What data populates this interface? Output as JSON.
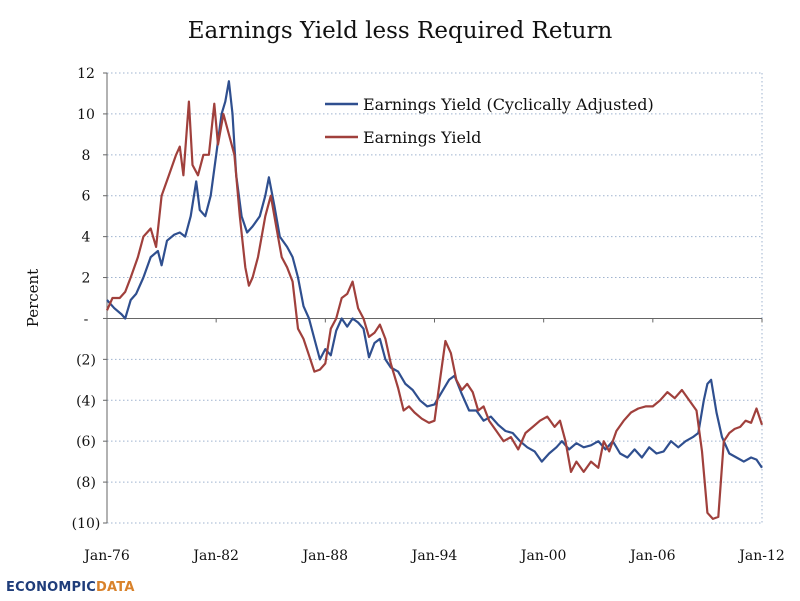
{
  "chart_data": {
    "type": "line",
    "title": "Earnings Yield less Required Return",
    "xlabel": "",
    "ylabel": "Percent",
    "ylim": [
      -10,
      12
    ],
    "xlim": [
      1976,
      2012
    ],
    "y_ticks": [
      {
        "value": 12,
        "label": "12"
      },
      {
        "value": 10,
        "label": "10"
      },
      {
        "value": 8,
        "label": "8"
      },
      {
        "value": 6,
        "label": "6"
      },
      {
        "value": 4,
        "label": "4"
      },
      {
        "value": 2,
        "label": "2"
      },
      {
        "value": 0,
        "label": "-"
      },
      {
        "value": -2,
        "label": "(2)"
      },
      {
        "value": -4,
        "label": "(4)"
      },
      {
        "value": -6,
        "label": "(6)"
      },
      {
        "value": -8,
        "label": "(8)"
      },
      {
        "value": -10,
        "label": "(10)"
      }
    ],
    "x_ticks": [
      {
        "value": 1976,
        "label": "Jan-76"
      },
      {
        "value": 1982,
        "label": "Jan-82"
      },
      {
        "value": 1988,
        "label": "Jan-88"
      },
      {
        "value": 1994,
        "label": "Jan-94"
      },
      {
        "value": 2000,
        "label": "Jan-00"
      },
      {
        "value": 2006,
        "label": "Jan-06"
      },
      {
        "value": 2012,
        "label": "Jan-12"
      }
    ],
    "grid": "horizontal-dotted",
    "legend_position": "top-right",
    "series": [
      {
        "name": "Earnings Yield (Cyclically Adjusted)",
        "color": "#2f4f8f",
        "points": [
          [
            1976.0,
            0.9
          ],
          [
            1976.4,
            0.5
          ],
          [
            1976.8,
            0.2
          ],
          [
            1977.0,
            0.0
          ],
          [
            1977.3,
            0.9
          ],
          [
            1977.6,
            1.2
          ],
          [
            1978.0,
            2.0
          ],
          [
            1978.4,
            3.0
          ],
          [
            1978.8,
            3.3
          ],
          [
            1979.0,
            2.6
          ],
          [
            1979.3,
            3.8
          ],
          [
            1979.7,
            4.1
          ],
          [
            1980.0,
            4.2
          ],
          [
            1980.3,
            4.0
          ],
          [
            1980.6,
            5.0
          ],
          [
            1980.9,
            6.7
          ],
          [
            1981.1,
            5.3
          ],
          [
            1981.4,
            5.0
          ],
          [
            1981.7,
            6.0
          ],
          [
            1982.0,
            8.0
          ],
          [
            1982.3,
            10.0
          ],
          [
            1982.5,
            10.6
          ],
          [
            1982.7,
            11.6
          ],
          [
            1982.9,
            10.0
          ],
          [
            1983.1,
            7.0
          ],
          [
            1983.4,
            5.0
          ],
          [
            1983.7,
            4.2
          ],
          [
            1984.0,
            4.5
          ],
          [
            1984.4,
            5.0
          ],
          [
            1984.7,
            6.0
          ],
          [
            1984.9,
            6.9
          ],
          [
            1985.2,
            5.5
          ],
          [
            1985.5,
            4.0
          ],
          [
            1985.9,
            3.5
          ],
          [
            1986.2,
            3.0
          ],
          [
            1986.5,
            2.0
          ],
          [
            1986.8,
            0.6
          ],
          [
            1987.1,
            0.0
          ],
          [
            1987.4,
            -1.0
          ],
          [
            1987.7,
            -2.0
          ],
          [
            1988.0,
            -1.5
          ],
          [
            1988.3,
            -1.8
          ],
          [
            1988.6,
            -0.6
          ],
          [
            1988.9,
            0.0
          ],
          [
            1989.2,
            -0.4
          ],
          [
            1989.5,
            0.0
          ],
          [
            1989.8,
            -0.2
          ],
          [
            1990.1,
            -0.5
          ],
          [
            1990.4,
            -1.9
          ],
          [
            1990.7,
            -1.2
          ],
          [
            1991.0,
            -1.0
          ],
          [
            1991.3,
            -2.0
          ],
          [
            1991.6,
            -2.4
          ],
          [
            1992.0,
            -2.6
          ],
          [
            1992.4,
            -3.2
          ],
          [
            1992.8,
            -3.5
          ],
          [
            1993.2,
            -4.0
          ],
          [
            1993.6,
            -4.3
          ],
          [
            1994.0,
            -4.2
          ],
          [
            1994.4,
            -3.6
          ],
          [
            1994.8,
            -3.0
          ],
          [
            1995.1,
            -2.8
          ],
          [
            1995.5,
            -3.7
          ],
          [
            1995.9,
            -4.5
          ],
          [
            1996.3,
            -4.5
          ],
          [
            1996.7,
            -5.0
          ],
          [
            1997.1,
            -4.8
          ],
          [
            1997.5,
            -5.2
          ],
          [
            1997.9,
            -5.5
          ],
          [
            1998.3,
            -5.6
          ],
          [
            1998.7,
            -6.0
          ],
          [
            1999.1,
            -6.3
          ],
          [
            1999.5,
            -6.5
          ],
          [
            1999.9,
            -7.0
          ],
          [
            2000.3,
            -6.6
          ],
          [
            2000.7,
            -6.3
          ],
          [
            2001.0,
            -6.0
          ],
          [
            2001.4,
            -6.4
          ],
          [
            2001.8,
            -6.1
          ],
          [
            2002.2,
            -6.3
          ],
          [
            2002.6,
            -6.2
          ],
          [
            2003.0,
            -6.0
          ],
          [
            2003.4,
            -6.4
          ],
          [
            2003.8,
            -6.0
          ],
          [
            2004.2,
            -6.6
          ],
          [
            2004.6,
            -6.8
          ],
          [
            2005.0,
            -6.4
          ],
          [
            2005.4,
            -6.8
          ],
          [
            2005.8,
            -6.3
          ],
          [
            2006.2,
            -6.6
          ],
          [
            2006.6,
            -6.5
          ],
          [
            2007.0,
            -6.0
          ],
          [
            2007.4,
            -6.3
          ],
          [
            2007.8,
            -6.0
          ],
          [
            2008.2,
            -5.8
          ],
          [
            2008.5,
            -5.6
          ],
          [
            2008.8,
            -4.0
          ],
          [
            2009.0,
            -3.2
          ],
          [
            2009.2,
            -3.0
          ],
          [
            2009.5,
            -4.6
          ],
          [
            2009.8,
            -5.8
          ],
          [
            2010.2,
            -6.6
          ],
          [
            2010.6,
            -6.8
          ],
          [
            2011.0,
            -7.0
          ],
          [
            2011.4,
            -6.8
          ],
          [
            2011.7,
            -6.9
          ],
          [
            2012.0,
            -7.3
          ]
        ]
      },
      {
        "name": "Earnings Yield",
        "color": "#a0403c",
        "points": [
          [
            1976.0,
            0.4
          ],
          [
            1976.3,
            1.0
          ],
          [
            1976.7,
            1.0
          ],
          [
            1977.0,
            1.3
          ],
          [
            1977.3,
            2.0
          ],
          [
            1977.7,
            3.0
          ],
          [
            1978.0,
            4.0
          ],
          [
            1978.4,
            4.4
          ],
          [
            1978.7,
            3.5
          ],
          [
            1979.0,
            6.0
          ],
          [
            1979.4,
            7.0
          ],
          [
            1979.8,
            8.0
          ],
          [
            1980.0,
            8.4
          ],
          [
            1980.2,
            7.0
          ],
          [
            1980.5,
            10.6
          ],
          [
            1980.7,
            7.5
          ],
          [
            1981.0,
            7.0
          ],
          [
            1981.3,
            8.0
          ],
          [
            1981.6,
            8.0
          ],
          [
            1981.9,
            10.5
          ],
          [
            1982.1,
            8.5
          ],
          [
            1982.4,
            10.0
          ],
          [
            1982.7,
            9.0
          ],
          [
            1983.0,
            8.0
          ],
          [
            1983.3,
            5.0
          ],
          [
            1983.6,
            2.5
          ],
          [
            1983.8,
            1.6
          ],
          [
            1984.0,
            2.0
          ],
          [
            1984.3,
            3.0
          ],
          [
            1984.7,
            5.0
          ],
          [
            1985.0,
            6.0
          ],
          [
            1985.3,
            4.5
          ],
          [
            1985.6,
            3.0
          ],
          [
            1985.9,
            2.5
          ],
          [
            1986.2,
            1.8
          ],
          [
            1986.5,
            -0.5
          ],
          [
            1986.8,
            -1.0
          ],
          [
            1987.1,
            -1.8
          ],
          [
            1987.4,
            -2.6
          ],
          [
            1987.7,
            -2.5
          ],
          [
            1988.0,
            -2.2
          ],
          [
            1988.3,
            -0.5
          ],
          [
            1988.6,
            0.0
          ],
          [
            1988.9,
            1.0
          ],
          [
            1989.2,
            1.2
          ],
          [
            1989.5,
            1.8
          ],
          [
            1989.8,
            0.5
          ],
          [
            1990.1,
            0.0
          ],
          [
            1990.4,
            -0.9
          ],
          [
            1990.7,
            -0.7
          ],
          [
            1991.0,
            -0.3
          ],
          [
            1991.3,
            -1.0
          ],
          [
            1991.6,
            -2.2
          ],
          [
            1992.0,
            -3.4
          ],
          [
            1992.3,
            -4.5
          ],
          [
            1992.6,
            -4.3
          ],
          [
            1992.9,
            -4.6
          ],
          [
            1993.3,
            -4.9
          ],
          [
            1993.7,
            -5.1
          ],
          [
            1994.0,
            -5.0
          ],
          [
            1994.3,
            -3.0
          ],
          [
            1994.6,
            -1.1
          ],
          [
            1994.9,
            -1.7
          ],
          [
            1995.2,
            -3.0
          ],
          [
            1995.5,
            -3.5
          ],
          [
            1995.8,
            -3.2
          ],
          [
            1996.1,
            -3.6
          ],
          [
            1996.4,
            -4.5
          ],
          [
            1996.7,
            -4.3
          ],
          [
            1997.0,
            -5.0
          ],
          [
            1997.4,
            -5.5
          ],
          [
            1997.8,
            -6.0
          ],
          [
            1998.2,
            -5.8
          ],
          [
            1998.6,
            -6.4
          ],
          [
            1999.0,
            -5.6
          ],
          [
            1999.4,
            -5.3
          ],
          [
            1999.8,
            -5.0
          ],
          [
            2000.2,
            -4.8
          ],
          [
            2000.6,
            -5.3
          ],
          [
            2000.9,
            -5.0
          ],
          [
            2001.2,
            -6.0
          ],
          [
            2001.5,
            -7.5
          ],
          [
            2001.8,
            -7.0
          ],
          [
            2002.2,
            -7.5
          ],
          [
            2002.6,
            -7.0
          ],
          [
            2003.0,
            -7.3
          ],
          [
            2003.3,
            -6.0
          ],
          [
            2003.6,
            -6.5
          ],
          [
            2004.0,
            -5.5
          ],
          [
            2004.4,
            -5.0
          ],
          [
            2004.8,
            -4.6
          ],
          [
            2005.2,
            -4.4
          ],
          [
            2005.6,
            -4.3
          ],
          [
            2006.0,
            -4.3
          ],
          [
            2006.4,
            -4.0
          ],
          [
            2006.8,
            -3.6
          ],
          [
            2007.2,
            -3.9
          ],
          [
            2007.6,
            -3.5
          ],
          [
            2008.0,
            -4.0
          ],
          [
            2008.4,
            -4.5
          ],
          [
            2008.7,
            -6.5
          ],
          [
            2009.0,
            -9.5
          ],
          [
            2009.3,
            -9.8
          ],
          [
            2009.6,
            -9.7
          ],
          [
            2009.9,
            -6.0
          ],
          [
            2010.2,
            -5.6
          ],
          [
            2010.5,
            -5.4
          ],
          [
            2010.8,
            -5.3
          ],
          [
            2011.1,
            -5.0
          ],
          [
            2011.4,
            -5.1
          ],
          [
            2011.7,
            -4.4
          ],
          [
            2012.0,
            -5.2
          ]
        ]
      }
    ]
  },
  "branding": {
    "logo_part1": "ECONOMPIC",
    "logo_part2": "DATA"
  }
}
